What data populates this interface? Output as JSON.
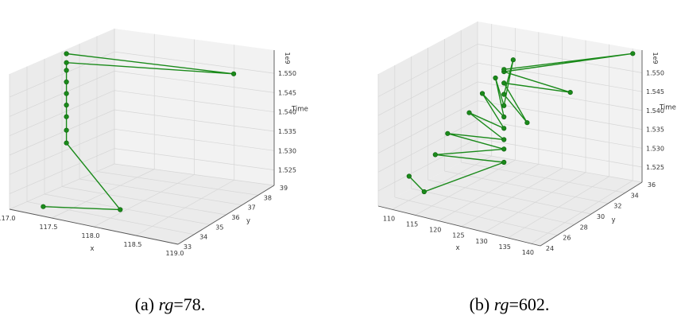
{
  "colors": {
    "series": "#1a8a1a",
    "grid": "#d6d6d6",
    "pane": "#f2f2f2",
    "pane_side": "#ebebeb"
  },
  "chart_data": [
    {
      "type": "scatter",
      "subtype": "3d-line",
      "caption": {
        "prefix": "(a) ",
        "var": "rg",
        "suffix": "=78."
      },
      "xlabel": "x",
      "ylabel": "y",
      "zlabel": "Time",
      "zscale_text": "1e9",
      "xticks": [
        "117.0",
        "117.5",
        "118.0",
        "118.5",
        "119.0"
      ],
      "yticks": [
        "33",
        "34",
        "35",
        "36",
        "37",
        "38",
        "39"
      ],
      "zticks": [
        "1.525",
        "1.530",
        "1.535",
        "1.540",
        "1.545",
        "1.550"
      ],
      "xlim": [
        117.0,
        119.0
      ],
      "ylim": [
        33,
        39
      ],
      "zlim": [
        1.521,
        1.556
      ],
      "points": [
        {
          "x": 117.4,
          "y": 33.0,
          "z": 1.5235
        },
        {
          "x": 118.2,
          "y": 33.6,
          "z": 1.5248
        },
        {
          "x": 117.2,
          "y": 35.5,
          "z": 1.5327
        },
        {
          "x": 117.2,
          "y": 35.5,
          "z": 1.536
        },
        {
          "x": 117.2,
          "y": 35.5,
          "z": 1.5395
        },
        {
          "x": 117.2,
          "y": 35.5,
          "z": 1.5425
        },
        {
          "x": 117.2,
          "y": 35.5,
          "z": 1.5455
        },
        {
          "x": 117.2,
          "y": 35.5,
          "z": 1.5485
        },
        {
          "x": 117.2,
          "y": 35.5,
          "z": 1.5515
        },
        {
          "x": 117.2,
          "y": 35.5,
          "z": 1.5535
        },
        {
          "x": 118.9,
          "y": 37.0,
          "z": 1.5545
        },
        {
          "x": 117.2,
          "y": 35.5,
          "z": 1.5558
        }
      ]
    },
    {
      "type": "scatter",
      "subtype": "3d-line",
      "caption": {
        "prefix": "(b) ",
        "var": "rg",
        "suffix": "=602."
      },
      "xlabel": "x",
      "ylabel": "y",
      "zlabel": "Time",
      "zscale_text": "1e9",
      "xticks": [
        "110",
        "115",
        "120",
        "125",
        "130",
        "135",
        "140"
      ],
      "yticks": [
        "24",
        "26",
        "28",
        "30",
        "32",
        "34",
        "36"
      ],
      "zticks": [
        "1.525",
        "1.530",
        "1.535",
        "1.540",
        "1.545",
        "1.550"
      ],
      "xlim": [
        107,
        142
      ],
      "ylim": [
        24,
        36
      ],
      "zlim": [
        1.521,
        1.556
      ],
      "points": [
        {
          "x": 110,
          "y": 26,
          "z": 1.527
        },
        {
          "x": 116,
          "y": 24.5,
          "z": 1.5268
        },
        {
          "x": 125,
          "y": 29,
          "z": 1.531
        },
        {
          "x": 112,
          "y": 28,
          "z": 1.5305
        },
        {
          "x": 125,
          "y": 29,
          "z": 1.5345
        },
        {
          "x": 111,
          "y": 30,
          "z": 1.533
        },
        {
          "x": 125,
          "y": 29,
          "z": 1.537
        },
        {
          "x": 112,
          "y": 32,
          "z": 1.536
        },
        {
          "x": 125,
          "y": 29,
          "z": 1.54
        },
        {
          "x": 113,
          "y": 33,
          "z": 1.54
        },
        {
          "x": 125,
          "y": 29,
          "z": 1.543
        },
        {
          "x": 114,
          "y": 34,
          "z": 1.543
        },
        {
          "x": 125,
          "y": 29,
          "z": 1.546
        },
        {
          "x": 116,
          "y": 35,
          "z": 1.547
        },
        {
          "x": 125,
          "y": 29,
          "z": 1.549
        },
        {
          "x": 130,
          "y": 29,
          "z": 1.543
        },
        {
          "x": 125,
          "y": 29,
          "z": 1.552
        },
        {
          "x": 132,
          "y": 33,
          "z": 1.546
        },
        {
          "x": 125,
          "y": 29,
          "z": 1.555
        },
        {
          "x": 140,
          "y": 36,
          "z": 1.5545
        },
        {
          "x": 125,
          "y": 29,
          "z": 1.5556
        }
      ]
    }
  ]
}
